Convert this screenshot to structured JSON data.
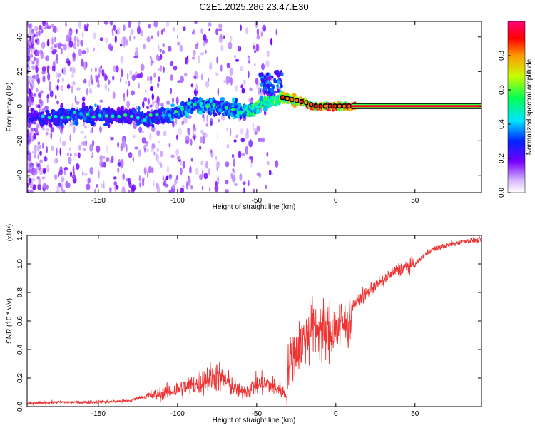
{
  "title": "C2E1.2025.286.23.47.E30",
  "chart_data": [
    {
      "type": "heatmap",
      "title": "C2E1.2025.286.23.47.E30",
      "xlabel": "Height of straight line (km)",
      "ylabel": "Frequency (Hz)",
      "xlim": [
        -195,
        92
      ],
      "ylim": [
        -50,
        49
      ],
      "xticks": [
        -150,
        -100,
        -50,
        0,
        50
      ],
      "yticks": [
        -40,
        -20,
        0,
        20,
        40
      ],
      "trace": {
        "x": [
          -195,
          -180,
          -165,
          -150,
          -140,
          -130,
          -120,
          -110,
          -100,
          -90,
          -80,
          -70,
          -60,
          -55,
          -50,
          -45,
          -40,
          -35,
          -30,
          -25,
          -20,
          -15,
          -10,
          -5,
          0,
          5,
          10,
          15,
          20,
          30,
          50,
          70,
          92
        ],
        "y": [
          -6,
          -7,
          -5,
          -5,
          -6,
          -5,
          -8,
          -6,
          -4,
          1,
          0,
          -1,
          -3,
          -2,
          -1,
          2,
          3,
          5,
          4,
          3,
          2,
          0,
          0,
          0,
          0,
          0,
          0,
          0,
          0,
          0,
          0,
          0,
          0
        ],
        "amplitude": [
          0.25,
          0.3,
          0.35,
          0.35,
          0.3,
          0.3,
          0.35,
          0.35,
          0.4,
          0.4,
          0.4,
          0.35,
          0.45,
          0.55,
          0.6,
          0.55,
          0.6,
          0.7,
          0.75,
          0.8,
          0.85,
          0.9,
          0.92,
          0.95,
          0.95,
          0.95,
          0.97,
          0.97,
          0.97,
          0.97,
          0.97,
          0.97,
          0.97
        ]
      },
      "colorbar": {
        "label": "Normalized spectral amplitude",
        "ticks": [
          "0.0",
          "0.2",
          "0.4",
          "0.6",
          "0.8"
        ],
        "range": [
          0,
          1
        ]
      }
    },
    {
      "type": "line",
      "xlabel": "Height of straight line (km)",
      "ylabel": "SNR (10 * v/v)",
      "multiplier_label": "(x10⁴)",
      "xlim": [
        -195,
        92
      ],
      "ylim": [
        0,
        1.2
      ],
      "xticks": [
        -150,
        -100,
        -50,
        0,
        50
      ],
      "yticks": [
        "0.0",
        "0.2",
        "0.4",
        "0.6",
        "0.8",
        "1.0",
        "1.2"
      ],
      "series": [
        {
          "name": "SNR",
          "color": "#ee3333",
          "x": [
            -195,
            -180,
            -160,
            -140,
            -130,
            -125,
            -120,
            -110,
            -100,
            -90,
            -80,
            -75,
            -70,
            -65,
            -60,
            -55,
            -50,
            -45,
            -40,
            -35,
            -31,
            -30,
            -25,
            -20,
            -15,
            -12,
            -10,
            -5,
            0,
            5,
            8,
            10,
            15,
            20,
            25,
            30,
            35,
            40,
            45,
            50,
            55,
            60,
            70,
            80,
            92
          ],
          "y": [
            0.02,
            0.03,
            0.03,
            0.035,
            0.04,
            0.06,
            0.07,
            0.09,
            0.12,
            0.15,
            0.2,
            0.22,
            0.18,
            0.14,
            0.1,
            0.12,
            0.15,
            0.16,
            0.14,
            0.12,
            0.08,
            0.3,
            0.4,
            0.48,
            0.5,
            0.55,
            0.55,
            0.52,
            0.55,
            0.58,
            0.58,
            0.7,
            0.75,
            0.8,
            0.85,
            0.88,
            0.93,
            0.96,
            0.98,
            1.0,
            1.05,
            1.1,
            1.13,
            1.16,
            1.17
          ]
        }
      ]
    }
  ]
}
